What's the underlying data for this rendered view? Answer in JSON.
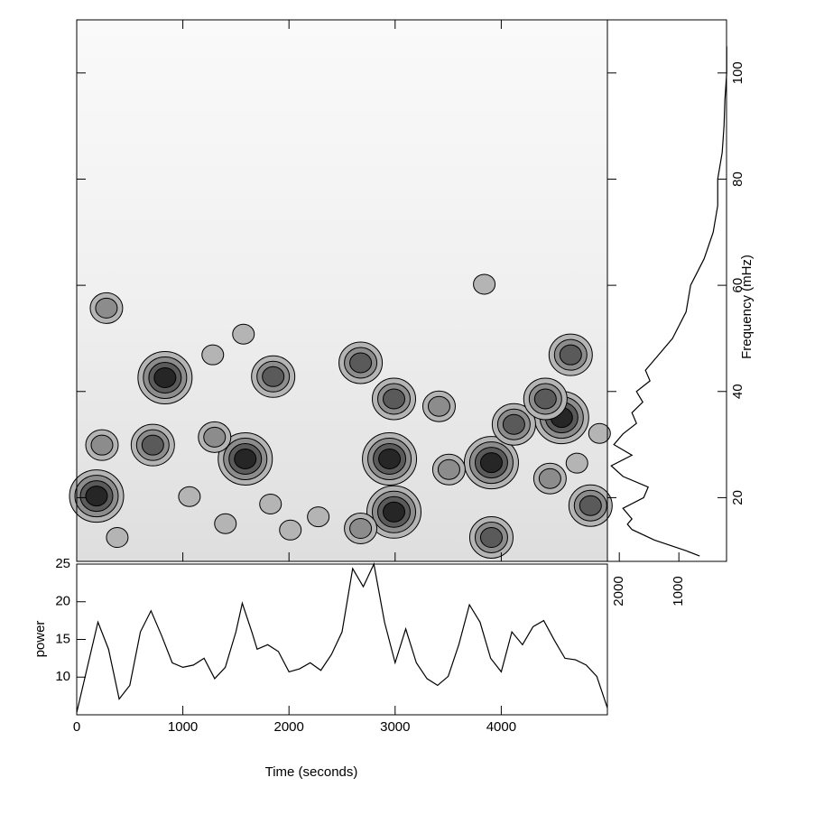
{
  "chart_data": [
    {
      "type": "contour",
      "ylabel": "Frequency (mHz)",
      "x": [
        187,
        832,
        1588,
        2947,
        2989,
        3907,
        3907,
        4569,
        4119,
        4654,
        2675,
        1851,
        2989,
        3414,
        717,
        238,
        1299,
        280,
        3840,
        1062,
        2675,
        4459,
        4841,
        382,
        1401,
        2013,
        2276,
        1826,
        4713,
        4926,
        1571,
        1282,
        4416,
        3507
      ],
      "y": [
        20.3,
        42.6,
        27.3,
        27.3,
        17.3,
        26.6,
        12.5,
        35.1,
        33.8,
        46.9,
        45.4,
        42.8,
        38.6,
        37.2,
        29.9,
        29.9,
        31.4,
        55.7,
        60.2,
        20.2,
        14.2,
        23.6,
        18.5,
        12.5,
        15.1,
        13.9,
        16.4,
        18.8,
        26.5,
        32.1,
        50.8,
        46.9,
        38.6,
        25.3
      ],
      "levels": [
        4,
        4,
        4,
        4,
        4,
        4,
        3,
        4,
        3,
        3,
        3,
        3,
        3,
        2,
        3,
        2,
        2,
        2,
        1,
        1,
        2,
        2,
        3,
        1,
        1,
        1,
        1,
        1,
        1,
        1,
        1,
        1,
        3,
        2
      ],
      "colors": [
        "#b4b4b4",
        "#8c8c8c",
        "#5a5a5a",
        "#262626"
      ],
      "xlim": [
        0,
        5000
      ],
      "xticks": [
        0,
        1000,
        2000,
        3000,
        4000
      ],
      "ylim": [
        8,
        110
      ],
      "yticks": [
        20,
        40,
        60,
        80,
        100
      ]
    },
    {
      "type": "line",
      "xlabel": "Time (seconds)",
      "ylabel": "power",
      "x": [
        0,
        100,
        200,
        300,
        400,
        500,
        600,
        700,
        800,
        900,
        1000,
        1100,
        1200,
        1300,
        1400,
        1500,
        1560,
        1650,
        1700,
        1800,
        1900,
        2000,
        2100,
        2200,
        2300,
        2400,
        2500,
        2600,
        2700,
        2800,
        2900,
        3000,
        3100,
        3200,
        3300,
        3400,
        3500,
        3600,
        3700,
        3800,
        3900,
        4000,
        4100,
        4200,
        4300,
        4400,
        4500,
        4600,
        4700,
        4800,
        4900,
        5000
      ],
      "values": [
        5.3,
        11.3,
        17.3,
        13.7,
        7.1,
        8.9,
        16,
        18.8,
        15.5,
        11.9,
        11.3,
        11.6,
        12.5,
        9.8,
        11.3,
        16,
        19.8,
        16,
        13.7,
        14.3,
        13.4,
        10.7,
        11.1,
        11.9,
        10.9,
        13,
        16,
        24.4,
        22,
        25,
        17.3,
        11.9,
        16.4,
        11.9,
        9.8,
        8.9,
        10.1,
        14.3,
        19.6,
        17.3,
        12.5,
        10.7,
        16,
        14.3,
        16.7,
        17.5,
        14.9,
        12.5,
        12.3,
        11.6,
        10.1,
        5.9
      ],
      "color": "#000000",
      "xlim": [
        0,
        5000
      ],
      "xticks": [
        0,
        1000,
        2000,
        3000,
        4000
      ],
      "ylim": [
        5,
        25
      ],
      "yticks": [
        10,
        15,
        20,
        25
      ]
    },
    {
      "type": "profile",
      "y": [
        9,
        10,
        12,
        14,
        15,
        16,
        18,
        20,
        22,
        24,
        26,
        28,
        30,
        32,
        34,
        36,
        38,
        40,
        42,
        44,
        46,
        50,
        55,
        60,
        65,
        70,
        75,
        80,
        85,
        90,
        95,
        100,
        105
      ],
      "values": [
        651,
        879,
        1409,
        1788,
        1864,
        1788,
        1939,
        1591,
        1515,
        1939,
        2136,
        1788,
        2091,
        1939,
        1712,
        1788,
        1606,
        1712,
        1485,
        1561,
        1409,
        1106,
        879,
        803,
        576,
        424,
        348,
        348,
        273,
        242,
        227,
        197,
        197
      ],
      "color": "#000000",
      "xlim": [
        2200,
        200
      ],
      "xticks": [
        2000,
        1000
      ],
      "ylim": [
        8,
        110
      ]
    }
  ]
}
